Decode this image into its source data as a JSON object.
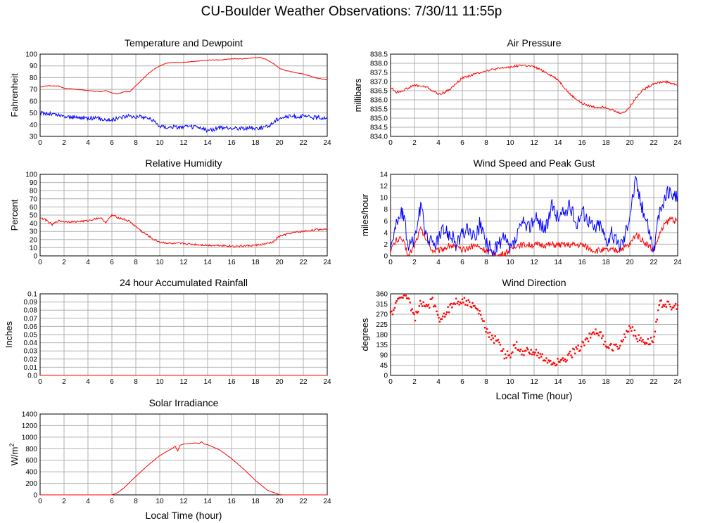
{
  "page_title": "CU-Boulder Weather Observations: 7/30/11 11:55p",
  "colors": {
    "red": "#ff0000",
    "blue": "#0000ff",
    "grid": "#b0b0b0"
  },
  "chart_data": [
    {
      "id": "temp",
      "type": "line",
      "title": "Temperature and Dewpoint",
      "ylabel": "Fahrenheit",
      "xlabel": "",
      "xlim": [
        0,
        24
      ],
      "ylim": [
        30,
        100
      ],
      "xticks": [
        "0",
        "2",
        "4",
        "6",
        "8",
        "10",
        "12",
        "14",
        "16",
        "18",
        "20",
        "22",
        "24"
      ],
      "yticks": [
        "30",
        "40",
        "50",
        "60",
        "70",
        "80",
        "90",
        "100"
      ],
      "grid": true,
      "series": [
        {
          "color": "#ff0000",
          "noise": 0.25,
          "x": [
            0,
            0.5,
            1,
            1.5,
            2,
            3,
            4,
            5,
            5.5,
            6,
            6.5,
            7,
            7.5,
            8,
            8.5,
            9,
            9.5,
            10,
            10.5,
            11,
            12,
            13,
            14,
            15,
            16,
            17,
            18,
            18.5,
            19,
            19.5,
            20,
            20.5,
            21,
            22,
            23,
            24
          ],
          "y": [
            72,
            73,
            73,
            73,
            71,
            70,
            69,
            68,
            69,
            67,
            66,
            68,
            68,
            73,
            78,
            83,
            87,
            90,
            92,
            93,
            93,
            94,
            95,
            95,
            96,
            96,
            97,
            97,
            95,
            92,
            88,
            86,
            85,
            83,
            80,
            78
          ]
        },
        {
          "color": "#0000ff",
          "noise": 1.8,
          "x": [
            0,
            1,
            2,
            3,
            4,
            5,
            6,
            7,
            8,
            9,
            9.5,
            10,
            10.5,
            11,
            12,
            13,
            14,
            15,
            16,
            17,
            18,
            19,
            20,
            21,
            22,
            23,
            24
          ],
          "y": [
            50,
            49,
            47,
            46,
            46,
            45,
            44,
            47,
            47,
            46,
            43,
            39,
            38,
            38,
            38,
            38,
            35,
            37,
            37,
            37,
            37,
            38,
            46,
            47,
            47,
            46,
            46
          ]
        }
      ]
    },
    {
      "id": "pressure",
      "type": "line",
      "title": "Air Pressure",
      "ylabel": "millibars",
      "xlabel": "",
      "xlim": [
        0,
        24
      ],
      "ylim": [
        834.0,
        838.5
      ],
      "xticks": [
        "0",
        "2",
        "4",
        "6",
        "8",
        "10",
        "12",
        "14",
        "16",
        "18",
        "20",
        "22",
        "24"
      ],
      "yticks": [
        "834.0",
        "834.5",
        "835.0",
        "835.5",
        "836.0",
        "836.5",
        "837.0",
        "837.5",
        "838.0",
        "838.5"
      ],
      "grid": true,
      "series": [
        {
          "color": "#ff0000",
          "noise": 0.06,
          "x": [
            0,
            0.5,
            1,
            2,
            3,
            4,
            4.5,
            5,
            6,
            7,
            8,
            9,
            10,
            11,
            12,
            13,
            14,
            15,
            16,
            17,
            18,
            19,
            19.5,
            20,
            20.5,
            21,
            22,
            23,
            24
          ],
          "y": [
            836.7,
            836.4,
            836.5,
            836.8,
            836.7,
            836.3,
            836.4,
            836.6,
            837.2,
            837.4,
            837.6,
            837.7,
            837.8,
            837.9,
            837.8,
            837.5,
            837.1,
            836.3,
            835.8,
            835.6,
            835.6,
            835.3,
            835.3,
            835.6,
            836.1,
            836.5,
            836.9,
            837.0,
            836.8
          ]
        }
      ]
    },
    {
      "id": "humidity",
      "type": "line",
      "title": "Relative Humidity",
      "ylabel": "Percent",
      "xlabel": "",
      "xlim": [
        0,
        24
      ],
      "ylim": [
        0,
        100
      ],
      "xticks": [
        "0",
        "2",
        "4",
        "6",
        "8",
        "10",
        "12",
        "14",
        "16",
        "18",
        "20",
        "22",
        "24"
      ],
      "yticks": [
        "0",
        "10",
        "20",
        "30",
        "40",
        "50",
        "60",
        "70",
        "80",
        "90",
        "100"
      ],
      "grid": true,
      "series": [
        {
          "color": "#ff0000",
          "noise": 1.2,
          "x": [
            0,
            0.5,
            1,
            1.5,
            2,
            3,
            4,
            5,
            5.5,
            6,
            6.5,
            7,
            7.5,
            8,
            8.5,
            9,
            9.5,
            10,
            11,
            12,
            13,
            14,
            15,
            16,
            17,
            18,
            19,
            19.5,
            20,
            21,
            22,
            23,
            24
          ],
          "y": [
            47,
            44,
            38,
            43,
            42,
            42,
            43,
            47,
            41,
            50,
            47,
            45,
            42,
            36,
            30,
            25,
            20,
            17,
            15,
            15,
            14,
            13,
            13,
            12,
            12,
            13,
            15,
            17,
            24,
            28,
            30,
            32,
            33
          ]
        }
      ]
    },
    {
      "id": "wind",
      "type": "line",
      "title": "Wind Speed and Peak Gust",
      "ylabel": "miles/hour",
      "xlabel": "",
      "xlim": [
        0,
        24
      ],
      "ylim": [
        0,
        15
      ],
      "xticks": [
        "0",
        "2",
        "4",
        "6",
        "8",
        "10",
        "12",
        "14",
        "16",
        "18",
        "20",
        "22",
        "24"
      ],
      "yticks": [
        "0",
        "2",
        "4",
        "6",
        "8",
        "10",
        "12",
        "14"
      ],
      "grid": true,
      "series": [
        {
          "color": "#ff0000",
          "noise": 0.6,
          "x": [
            0,
            0.5,
            1,
            1.5,
            2,
            2.5,
            3,
            3.5,
            4,
            5,
            6,
            7,
            8,
            9,
            10,
            10.5,
            11,
            12,
            13,
            14,
            15,
            16,
            17,
            18,
            19,
            20,
            20.5,
            21,
            22,
            22.5,
            23,
            23.5,
            24
          ],
          "y": [
            1,
            3,
            3,
            0,
            2,
            5,
            3,
            1,
            1,
            2,
            1,
            2,
            1,
            0,
            1,
            2,
            2,
            2,
            2,
            2,
            2,
            2,
            1,
            1,
            1,
            2,
            4,
            3,
            1,
            4,
            6,
            7,
            6
          ]
        },
        {
          "color": "#0000ff",
          "noise": 1.5,
          "x": [
            0,
            0.5,
            1,
            1.5,
            2,
            2.5,
            3,
            3.5,
            4,
            4.5,
            5,
            5.5,
            6,
            6.5,
            7,
            7.5,
            8,
            8.5,
            9,
            9.5,
            10,
            10.5,
            11,
            11.5,
            12,
            12.5,
            13,
            13.5,
            14,
            14.5,
            15,
            15.5,
            16,
            16.5,
            17,
            17.5,
            18,
            18.5,
            19,
            19.5,
            20,
            20.5,
            21,
            21.5,
            22,
            22.5,
            23,
            23.5,
            24
          ],
          "y": [
            2,
            6,
            8,
            2,
            3,
            9,
            4,
            2,
            3,
            5,
            4,
            2,
            4,
            5,
            3,
            6,
            2,
            1,
            2,
            3,
            1,
            3,
            6,
            5,
            7,
            6,
            5,
            9,
            7,
            8,
            9,
            6,
            8,
            7,
            5,
            6,
            3,
            4,
            2,
            3,
            8,
            14,
            9,
            6,
            1,
            8,
            11,
            12,
            10
          ]
        }
      ]
    },
    {
      "id": "rain",
      "type": "line",
      "title": "24 hour Accumulated Rainfall",
      "ylabel": "Inches",
      "xlabel": "",
      "xlim": [
        0,
        24
      ],
      "ylim": [
        0,
        0.1
      ],
      "xticks": [
        "0",
        "2",
        "4",
        "6",
        "8",
        "10",
        "12",
        "14",
        "16",
        "18",
        "20",
        "22",
        "24"
      ],
      "yticks": [
        "0.0",
        "0.01",
        "0.02",
        "0.03",
        "0.04",
        "0.05",
        "0.06",
        "0.07",
        "0.08",
        "0.09",
        "0.1"
      ],
      "grid": true,
      "series": [
        {
          "color": "#ff0000",
          "noise": 0,
          "x": [
            0,
            24
          ],
          "y": [
            0,
            0
          ]
        }
      ]
    },
    {
      "id": "direction",
      "type": "scatter",
      "title": "Wind Direction",
      "ylabel": "degrees",
      "xlabel": "Local Time (hour)",
      "xlim": [
        0,
        24
      ],
      "ylim": [
        0,
        360
      ],
      "xticks": [
        "0",
        "2",
        "4",
        "6",
        "8",
        "10",
        "12",
        "14",
        "16",
        "18",
        "20",
        "22",
        "24"
      ],
      "yticks": [
        "0",
        "45",
        "90",
        "135",
        "180",
        "225",
        "270",
        "315",
        "360"
      ],
      "grid": true,
      "series": [
        {
          "color": "#ff0000",
          "noise": 18,
          "x": [
            0,
            0.5,
            1,
            1.5,
            2,
            2.5,
            3,
            3.5,
            4,
            4.5,
            5,
            5.5,
            6,
            6.5,
            7,
            7.5,
            8,
            8.5,
            9,
            9.5,
            10,
            10.5,
            11,
            11.5,
            12,
            12.5,
            13,
            13.5,
            14,
            14.5,
            15,
            15.5,
            16,
            16.5,
            17,
            17.5,
            18,
            18.5,
            19,
            19.5,
            20,
            20.5,
            21,
            21.5,
            22,
            22.5,
            23,
            23.5,
            24
          ],
          "y": [
            270,
            315,
            360,
            340,
            250,
            315,
            300,
            330,
            250,
            270,
            300,
            330,
            330,
            320,
            300,
            270,
            200,
            160,
            160,
            90,
            90,
            135,
            90,
            110,
            110,
            80,
            70,
            40,
            70,
            60,
            90,
            110,
            135,
            160,
            200,
            180,
            135,
            120,
            130,
            160,
            225,
            170,
            160,
            150,
            160,
            315,
            320,
            300,
            300
          ]
        }
      ]
    },
    {
      "id": "solar",
      "type": "line",
      "title": "Solar Irradiance",
      "ylabel": "W/m",
      "ylabel_sup": "2",
      "xlabel": "Local Time (hour)",
      "xlim": [
        0,
        24
      ],
      "ylim": [
        0,
        1400
      ],
      "xticks": [
        "0",
        "2",
        "4",
        "6",
        "8",
        "10",
        "12",
        "14",
        "16",
        "18",
        "20",
        "22",
        "24"
      ],
      "yticks": [
        "0",
        "200",
        "400",
        "600",
        "800",
        "1000",
        "1200",
        "1400"
      ],
      "grid": true,
      "series": [
        {
          "color": "#ff0000",
          "noise": 0,
          "x": [
            0,
            6,
            6.5,
            7,
            8,
            9,
            10,
            11,
            11.3,
            11.5,
            11.7,
            12,
            13,
            13.3,
            13.5,
            13.7,
            14,
            15,
            16,
            17,
            18,
            19,
            20,
            20.3,
            24
          ],
          "y": [
            0,
            0,
            40,
            120,
            320,
            510,
            680,
            800,
            840,
            760,
            860,
            880,
            900,
            890,
            920,
            880,
            870,
            780,
            630,
            450,
            250,
            80,
            5,
            0,
            0
          ]
        }
      ]
    }
  ]
}
